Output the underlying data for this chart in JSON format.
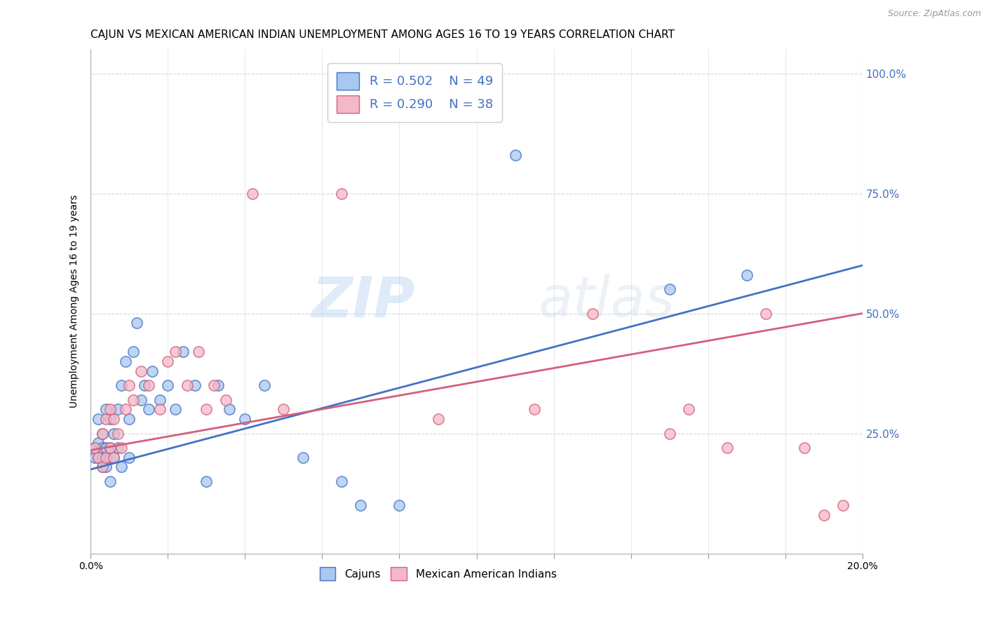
{
  "title": "CAJUN VS MEXICAN AMERICAN INDIAN UNEMPLOYMENT AMONG AGES 16 TO 19 YEARS CORRELATION CHART",
  "source": "Source: ZipAtlas.com",
  "ylabel": "Unemployment Among Ages 16 to 19 years",
  "right_yticks": [
    "100.0%",
    "75.0%",
    "50.0%",
    "25.0%"
  ],
  "right_ytick_vals": [
    1.0,
    0.75,
    0.5,
    0.25
  ],
  "legend_bottom": [
    "Cajuns",
    "Mexican American Indians"
  ],
  "series1_label": "R = 0.502    N = 49",
  "series2_label": "R = 0.290    N = 38",
  "cajun_color": "#a8c8f0",
  "mexican_color": "#f5b8c8",
  "cajun_line_color": "#4472c4",
  "mexican_line_color": "#d4607a",
  "background_color": "#ffffff",
  "grid_color": "#cccccc",
  "watermark_zip": "ZIP",
  "watermark_atlas": "atlas",
  "xmin": 0.0,
  "xmax": 0.2,
  "ymin": 0.0,
  "ymax": 1.05,
  "cajun_x": [
    0.001,
    0.001,
    0.002,
    0.002,
    0.002,
    0.003,
    0.003,
    0.003,
    0.003,
    0.004,
    0.004,
    0.004,
    0.004,
    0.005,
    0.005,
    0.005,
    0.005,
    0.006,
    0.006,
    0.007,
    0.007,
    0.008,
    0.008,
    0.009,
    0.01,
    0.01,
    0.011,
    0.012,
    0.013,
    0.014,
    0.015,
    0.016,
    0.018,
    0.02,
    0.022,
    0.024,
    0.027,
    0.03,
    0.033,
    0.036,
    0.04,
    0.045,
    0.055,
    0.065,
    0.07,
    0.08,
    0.11,
    0.15,
    0.17
  ],
  "cajun_y": [
    0.2,
    0.22,
    0.2,
    0.23,
    0.28,
    0.18,
    0.2,
    0.22,
    0.25,
    0.18,
    0.2,
    0.22,
    0.3,
    0.15,
    0.2,
    0.22,
    0.28,
    0.2,
    0.25,
    0.22,
    0.3,
    0.18,
    0.35,
    0.4,
    0.2,
    0.28,
    0.42,
    0.48,
    0.32,
    0.35,
    0.3,
    0.38,
    0.32,
    0.35,
    0.3,
    0.42,
    0.35,
    0.15,
    0.35,
    0.3,
    0.28,
    0.35,
    0.2,
    0.15,
    0.1,
    0.1,
    0.83,
    0.55,
    0.58
  ],
  "mexican_x": [
    0.001,
    0.002,
    0.003,
    0.003,
    0.004,
    0.004,
    0.005,
    0.005,
    0.006,
    0.006,
    0.007,
    0.008,
    0.009,
    0.01,
    0.011,
    0.013,
    0.015,
    0.018,
    0.02,
    0.022,
    0.025,
    0.028,
    0.03,
    0.032,
    0.035,
    0.042,
    0.05,
    0.065,
    0.09,
    0.115,
    0.13,
    0.15,
    0.155,
    0.165,
    0.175,
    0.185,
    0.19,
    0.195
  ],
  "mexican_y": [
    0.22,
    0.2,
    0.18,
    0.25,
    0.2,
    0.28,
    0.22,
    0.3,
    0.2,
    0.28,
    0.25,
    0.22,
    0.3,
    0.35,
    0.32,
    0.38,
    0.35,
    0.3,
    0.4,
    0.42,
    0.35,
    0.42,
    0.3,
    0.35,
    0.32,
    0.75,
    0.3,
    0.75,
    0.28,
    0.3,
    0.5,
    0.25,
    0.3,
    0.22,
    0.5,
    0.22,
    0.08,
    0.1
  ],
  "xtick_positions": [
    0.0,
    0.02,
    0.04,
    0.06,
    0.08,
    0.1,
    0.12,
    0.14,
    0.16,
    0.18,
    0.2
  ],
  "title_fontsize": 11,
  "axis_label_fontsize": 10,
  "tick_fontsize": 10
}
